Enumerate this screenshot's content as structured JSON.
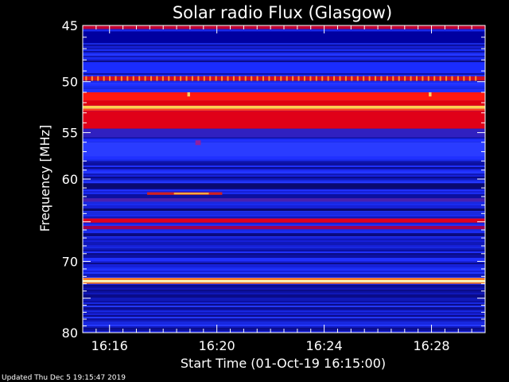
{
  "chart_data": {
    "type": "heatmap",
    "title": "Solar radio Flux (Glasgow)",
    "xlabel": "Start Time (01-Oct-19 16:15:00)",
    "ylabel": "Frequency [MHz]",
    "x_unit": "minutes after 16:00",
    "xlim": [
      15.0,
      30.0
    ],
    "ylim": [
      80,
      45
    ],
    "y_scale": "log",
    "x_ticks": [
      {
        "value": 16,
        "label": "16:16"
      },
      {
        "value": 20,
        "label": "16:20"
      },
      {
        "value": 24,
        "label": "16:24"
      },
      {
        "value": 28,
        "label": "16:28"
      }
    ],
    "y_ticks": [
      {
        "value": 45,
        "label": "45"
      },
      {
        "value": 50,
        "label": "50"
      },
      {
        "value": 55,
        "label": "55"
      },
      {
        "value": 60,
        "label": "60"
      },
      {
        "value": 70,
        "label": "70"
      },
      {
        "value": 80,
        "label": "80"
      }
    ],
    "background_level": "blue",
    "bands": [
      {
        "freq_low": 45.0,
        "freq_high": 45.3,
        "color": "#c00030"
      },
      {
        "freq_low": 45.5,
        "freq_high": 46.5,
        "color": "#0000a0"
      },
      {
        "freq_low": 48.2,
        "freq_high": 49.2,
        "color": "#1a2cff"
      },
      {
        "freq_low": 49.5,
        "freq_high": 49.9,
        "color": "#d01020"
      },
      {
        "freq_low": 51.0,
        "freq_high": 51.8,
        "color": "#ff1810"
      },
      {
        "freq_low": 51.8,
        "freq_high": 52.3,
        "color": "#e00010"
      },
      {
        "freq_low": 52.3,
        "freq_high": 52.6,
        "color": "#ffd050"
      },
      {
        "freq_low": 52.6,
        "freq_high": 52.8,
        "color": "#ff4020"
      },
      {
        "freq_low": 52.8,
        "freq_high": 54.6,
        "color": "#e00018"
      },
      {
        "freq_low": 54.6,
        "freq_high": 55.5,
        "color": "#3020c0"
      },
      {
        "freq_low": 56.0,
        "freq_high": 57.5,
        "color": "#2a3cff"
      },
      {
        "freq_low": 60.5,
        "freq_high": 61.0,
        "color": "#0a0a70"
      },
      {
        "freq_low": 62.2,
        "freq_high": 62.6,
        "color": "#4a20b0"
      },
      {
        "freq_low": 63.4,
        "freq_high": 63.7,
        "color": "#0a0a70"
      },
      {
        "freq_low": 64.6,
        "freq_high": 65.1,
        "color": "#e00020"
      },
      {
        "freq_low": 65.5,
        "freq_high": 65.9,
        "color": "#a00050"
      },
      {
        "freq_low": 66.4,
        "freq_high": 66.8,
        "color": "#0a0a80"
      },
      {
        "freq_low": 72.2,
        "freq_high": 72.5,
        "color": "#ff8020"
      },
      {
        "freq_low": 72.5,
        "freq_high": 72.8,
        "color": "#ffffc0"
      },
      {
        "freq_low": 72.8,
        "freq_high": 73.0,
        "color": "#ff8020"
      }
    ],
    "events": [
      {
        "t_start": 18.9,
        "t_end": 19.0,
        "freq_low": 51.0,
        "freq_high": 51.4,
        "color": "#ffd060"
      },
      {
        "t_start": 27.9,
        "t_end": 28.0,
        "freq_low": 51.0,
        "freq_high": 51.4,
        "color": "#ffd060"
      },
      {
        "t_start": 17.4,
        "t_end": 20.2,
        "freq_low": 61.5,
        "freq_high": 61.8,
        "color": "#d02020"
      },
      {
        "t_start": 18.4,
        "t_end": 19.7,
        "freq_low": 61.55,
        "freq_high": 61.75,
        "color": "#ffb040"
      },
      {
        "t_start": 19.2,
        "t_end": 19.4,
        "freq_low": 55.8,
        "freq_high": 56.3,
        "color": "#9020a0"
      }
    ],
    "comb_line": {
      "freq": 49.7,
      "t_start": 15.1,
      "t_end": 29.8,
      "spacing_min": 0.22,
      "color": "#ff9030"
    }
  },
  "footer": {
    "updated_text": "Updated Thu Dec 5 19:15:47 2019"
  }
}
